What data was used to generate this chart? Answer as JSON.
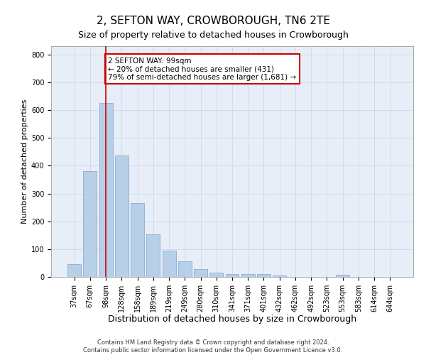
{
  "title": "2, SEFTON WAY, CROWBOROUGH, TN6 2TE",
  "subtitle": "Size of property relative to detached houses in Crowborough",
  "xlabel": "Distribution of detached houses by size in Crowborough",
  "ylabel": "Number of detached properties",
  "categories": [
    "37sqm",
    "67sqm",
    "98sqm",
    "128sqm",
    "158sqm",
    "189sqm",
    "219sqm",
    "249sqm",
    "280sqm",
    "310sqm",
    "341sqm",
    "371sqm",
    "401sqm",
    "432sqm",
    "462sqm",
    "492sqm",
    "523sqm",
    "553sqm",
    "583sqm",
    "614sqm",
    "644sqm"
  ],
  "values": [
    47,
    380,
    625,
    437,
    265,
    152,
    95,
    55,
    28,
    16,
    11,
    11,
    11,
    5,
    0,
    0,
    0,
    8,
    0,
    0,
    0
  ],
  "bar_color": "#b8cfe8",
  "bar_edge_color": "#7aa3cc",
  "property_line_x": 2,
  "property_line_color": "#cc0000",
  "annotation_text": "2 SEFTON WAY: 99sqm\n← 20% of detached houses are smaller (431)\n79% of semi-detached houses are larger (1,681) →",
  "annotation_box_color": "#cc0000",
  "annotation_bg_color": "#ffffff",
  "ylim": [
    0,
    830
  ],
  "yticks": [
    0,
    100,
    200,
    300,
    400,
    500,
    600,
    700,
    800
  ],
  "grid_color": "#d0d8e8",
  "bg_color": "#e8eef8",
  "footer_line1": "Contains HM Land Registry data © Crown copyright and database right 2024.",
  "footer_line2": "Contains public sector information licensed under the Open Government Licence v3.0.",
  "title_fontsize": 11,
  "subtitle_fontsize": 9,
  "xlabel_fontsize": 9,
  "ylabel_fontsize": 8,
  "tick_fontsize": 7,
  "footer_fontsize": 6,
  "annot_fontsize": 7.5
}
